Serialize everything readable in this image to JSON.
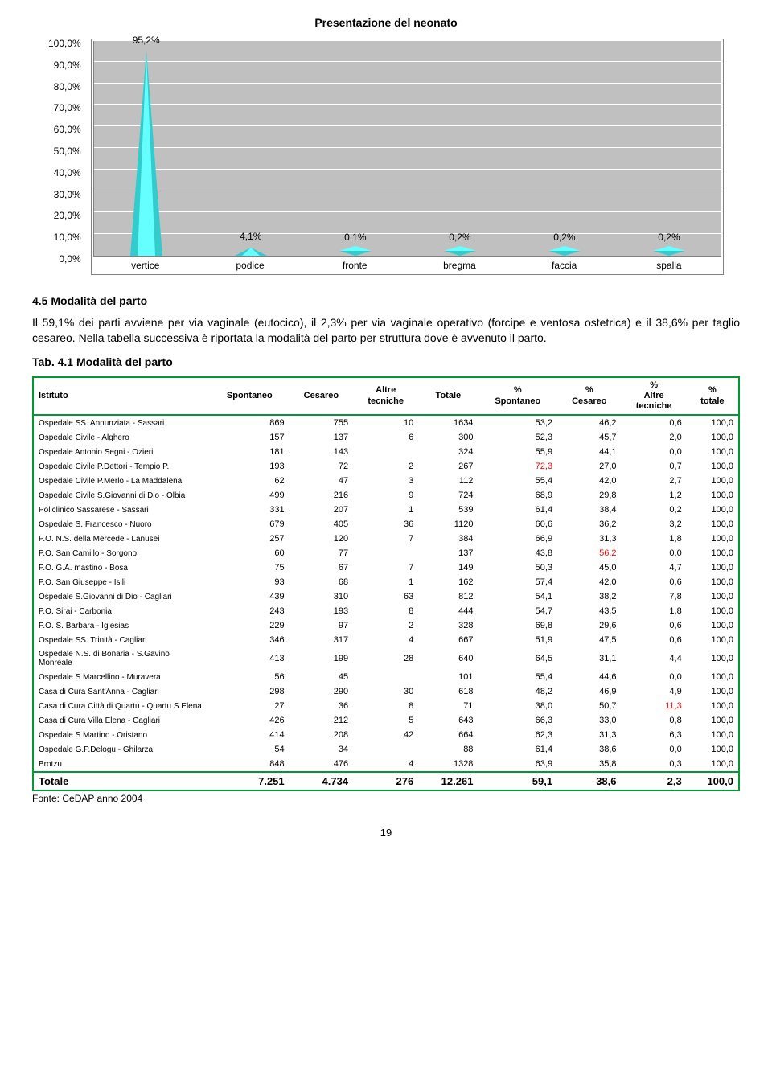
{
  "chart": {
    "title": "Presentazione del neonato",
    "type": "cone-bar",
    "ylim": [
      0,
      100
    ],
    "ytick_step": 10,
    "y_ticks": [
      "100,0%",
      "90,0%",
      "80,0%",
      "70,0%",
      "60,0%",
      "50,0%",
      "40,0%",
      "30,0%",
      "20,0%",
      "10,0%",
      "0,0%"
    ],
    "categories": [
      "vertice",
      "podice",
      "fronte",
      "bregma",
      "faccia",
      "spalla"
    ],
    "values": [
      95.2,
      4.1,
      0.1,
      0.2,
      0.2,
      0.2
    ],
    "value_labels": [
      "95,2%",
      "4,1%",
      "0,1%",
      "0,2%",
      "0,2%",
      "0,2%"
    ],
    "cone_fill": "#66ffff",
    "cone_shade": "#33cccc",
    "cone_edge": "#000000",
    "background": "#c0c0c0",
    "grid_color": "#ffffff",
    "label_fontsize": 12
  },
  "section": {
    "heading": "4.5 Modalità del parto",
    "paragraph": "Il 59,1% dei parti avviene per via vaginale (eutocico), il 2,3% per via vaginale operativo (forcipe e ventosa ostetrica) e il 38,6% per taglio cesareo. Nella tabella successiva è riportata la modalità del parto per struttura  dove è avvenuto il parto.",
    "table_caption": "Tab. 4.1 Modalità del parto"
  },
  "table": {
    "columns": [
      "Istituto",
      "Spontaneo",
      "Cesareo",
      "Altre tecniche",
      "Totale",
      "% Spontaneo",
      "% Cesareo",
      "% Altre tecniche",
      "% totale"
    ],
    "border_color": "#009933",
    "highlight_color": "#ff0000",
    "rows": [
      {
        "c": [
          "Ospedale SS. Annunziata - Sassari",
          "869",
          "755",
          "10",
          "1634",
          "53,2",
          "46,2",
          "0,6",
          "100,0"
        ]
      },
      {
        "c": [
          "Ospedale Civile - Alghero",
          "157",
          "137",
          "6",
          "300",
          "52,3",
          "45,7",
          "2,0",
          "100,0"
        ]
      },
      {
        "c": [
          "Ospedale Antonio Segni - Ozieri",
          "181",
          "143",
          "",
          "324",
          "55,9",
          "44,1",
          "0,0",
          "100,0"
        ]
      },
      {
        "c": [
          "Ospedale Civile P.Dettori - Tempio P.",
          "193",
          "72",
          "2",
          "267",
          "72,3",
          "27,0",
          "0,7",
          "100,0"
        ],
        "red": [
          5
        ]
      },
      {
        "c": [
          "Ospedale Civile P.Merlo - La Maddalena",
          "62",
          "47",
          "3",
          "112",
          "55,4",
          "42,0",
          "2,7",
          "100,0"
        ]
      },
      {
        "c": [
          "Ospedale Civile S.Giovanni di Dio - Olbia",
          "499",
          "216",
          "9",
          "724",
          "68,9",
          "29,8",
          "1,2",
          "100,0"
        ]
      },
      {
        "c": [
          "Policlinico Sassarese - Sassari",
          "331",
          "207",
          "1",
          "539",
          "61,4",
          "38,4",
          "0,2",
          "100,0"
        ]
      },
      {
        "c": [
          "Ospedale S. Francesco - Nuoro",
          "679",
          "405",
          "36",
          "1120",
          "60,6",
          "36,2",
          "3,2",
          "100,0"
        ]
      },
      {
        "c": [
          "P.O. N.S. della Mercede - Lanusei",
          "257",
          "120",
          "7",
          "384",
          "66,9",
          "31,3",
          "1,8",
          "100,0"
        ]
      },
      {
        "c": [
          "P.O. San Camillo - Sorgono",
          "60",
          "77",
          "",
          "137",
          "43,8",
          "56,2",
          "0,0",
          "100,0"
        ],
        "red": [
          6
        ]
      },
      {
        "c": [
          "P.O. G.A. mastino - Bosa",
          "75",
          "67",
          "7",
          "149",
          "50,3",
          "45,0",
          "4,7",
          "100,0"
        ]
      },
      {
        "c": [
          "P.O. San Giuseppe - Isili",
          "93",
          "68",
          "1",
          "162",
          "57,4",
          "42,0",
          "0,6",
          "100,0"
        ]
      },
      {
        "c": [
          "Ospedale S.Giovanni di Dio - Cagliari",
          "439",
          "310",
          "63",
          "812",
          "54,1",
          "38,2",
          "7,8",
          "100,0"
        ]
      },
      {
        "c": [
          "P.O. Sirai - Carbonia",
          "243",
          "193",
          "8",
          "444",
          "54,7",
          "43,5",
          "1,8",
          "100,0"
        ]
      },
      {
        "c": [
          "P.O. S. Barbara - Iglesias",
          "229",
          "97",
          "2",
          "328",
          "69,8",
          "29,6",
          "0,6",
          "100,0"
        ]
      },
      {
        "c": [
          "Ospedale SS. Trinità - Cagliari",
          "346",
          "317",
          "4",
          "667",
          "51,9",
          "47,5",
          "0,6",
          "100,0"
        ]
      },
      {
        "c": [
          "Ospedale N.S. di Bonaria - S.Gavino Monreale",
          "413",
          "199",
          "28",
          "640",
          "64,5",
          "31,1",
          "4,4",
          "100,0"
        ]
      },
      {
        "c": [
          "Ospedale S.Marcellino - Muravera",
          "56",
          "45",
          "",
          "101",
          "55,4",
          "44,6",
          "0,0",
          "100,0"
        ]
      },
      {
        "c": [
          "Casa di Cura Sant'Anna - Cagliari",
          "298",
          "290",
          "30",
          "618",
          "48,2",
          "46,9",
          "4,9",
          "100,0"
        ]
      },
      {
        "c": [
          "Casa di Cura Città di Quartu - Quartu S.Elena",
          "27",
          "36",
          "8",
          "71",
          "38,0",
          "50,7",
          "11,3",
          "100,0"
        ],
        "red": [
          7
        ]
      },
      {
        "c": [
          "Casa di Cura Villa Elena - Cagliari",
          "426",
          "212",
          "5",
          "643",
          "66,3",
          "33,0",
          "0,8",
          "100,0"
        ]
      },
      {
        "c": [
          "Ospedale S.Martino - Oristano",
          "414",
          "208",
          "42",
          "664",
          "62,3",
          "31,3",
          "6,3",
          "100,0"
        ]
      },
      {
        "c": [
          "Ospedale G.P.Delogu - Ghilarza",
          "54",
          "34",
          "",
          "88",
          "61,4",
          "38,6",
          "0,0",
          "100,0"
        ]
      },
      {
        "c": [
          "Brotzu",
          "848",
          "476",
          "4",
          "1328",
          "63,9",
          "35,8",
          "0,3",
          "100,0"
        ]
      }
    ],
    "total": [
      "Totale",
      "7.251",
      "4.734",
      "276",
      "12.261",
      "59,1",
      "38,6",
      "2,3",
      "100,0"
    ],
    "source": "Fonte: CeDAP anno 2004"
  },
  "page_number": "19"
}
